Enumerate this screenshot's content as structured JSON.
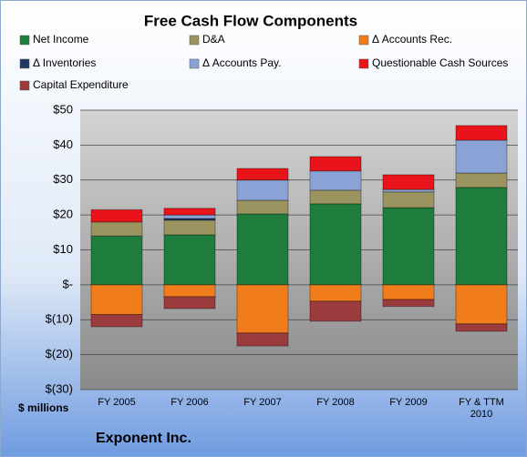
{
  "chart_data": {
    "type": "stacked-bar",
    "title": "Free Cash Flow Components",
    "y_unit_label": "$ millions",
    "footer": "Exponent Inc.",
    "categories": [
      "FY 2005",
      "FY 2006",
      "FY 2007",
      "FY 2008",
      "FY 2009",
      "FY & TTM 2010"
    ],
    "series": [
      {
        "name": "Net Income",
        "color": "#1e7d3c",
        "values": [
          14,
          14.3,
          20.3,
          23.2,
          22.1,
          27.9
        ]
      },
      {
        "name": "D&A",
        "color": "#9c9460",
        "values": [
          4,
          4.2,
          3.9,
          3.9,
          4.5,
          4.1
        ]
      },
      {
        "name": "Δ Accounts Rec.",
        "color": "#f07c1c",
        "values": [
          -8.5,
          -3.4,
          -13.8,
          -4.7,
          -4.2,
          -11.2
        ]
      },
      {
        "name": "Δ Inventories",
        "color": "#1f3864",
        "values": [
          0,
          0.5,
          0,
          0,
          0,
          0
        ]
      },
      {
        "name": "Δ Accounts Pay.",
        "color": "#8aa3d6",
        "values": [
          0,
          1,
          5.8,
          5.5,
          0.7,
          9.4
        ]
      },
      {
        "name": "Questionable Cash Sources",
        "color": "#e8141a",
        "values": [
          3.5,
          1.9,
          3.3,
          4.1,
          4.2,
          4.2
        ]
      },
      {
        "name": "Capital Expenditure",
        "color": "#9b3b3e",
        "values": [
          -3.5,
          -3.4,
          -3.7,
          -5.7,
          -2,
          -2.1
        ]
      }
    ],
    "ylim": [
      -30,
      50
    ],
    "yticks": [
      {
        "value": -30,
        "label": "$(30)"
      },
      {
        "value": -20,
        "label": "$(20)"
      },
      {
        "value": -10,
        "label": "$(10)"
      },
      {
        "value": 0,
        "label": "$-"
      },
      {
        "value": 10,
        "label": "$10"
      },
      {
        "value": 20,
        "label": "$20"
      },
      {
        "value": 30,
        "label": "$30"
      },
      {
        "value": 40,
        "label": "$40"
      },
      {
        "value": 50,
        "label": "$50"
      }
    ],
    "grid": true
  }
}
